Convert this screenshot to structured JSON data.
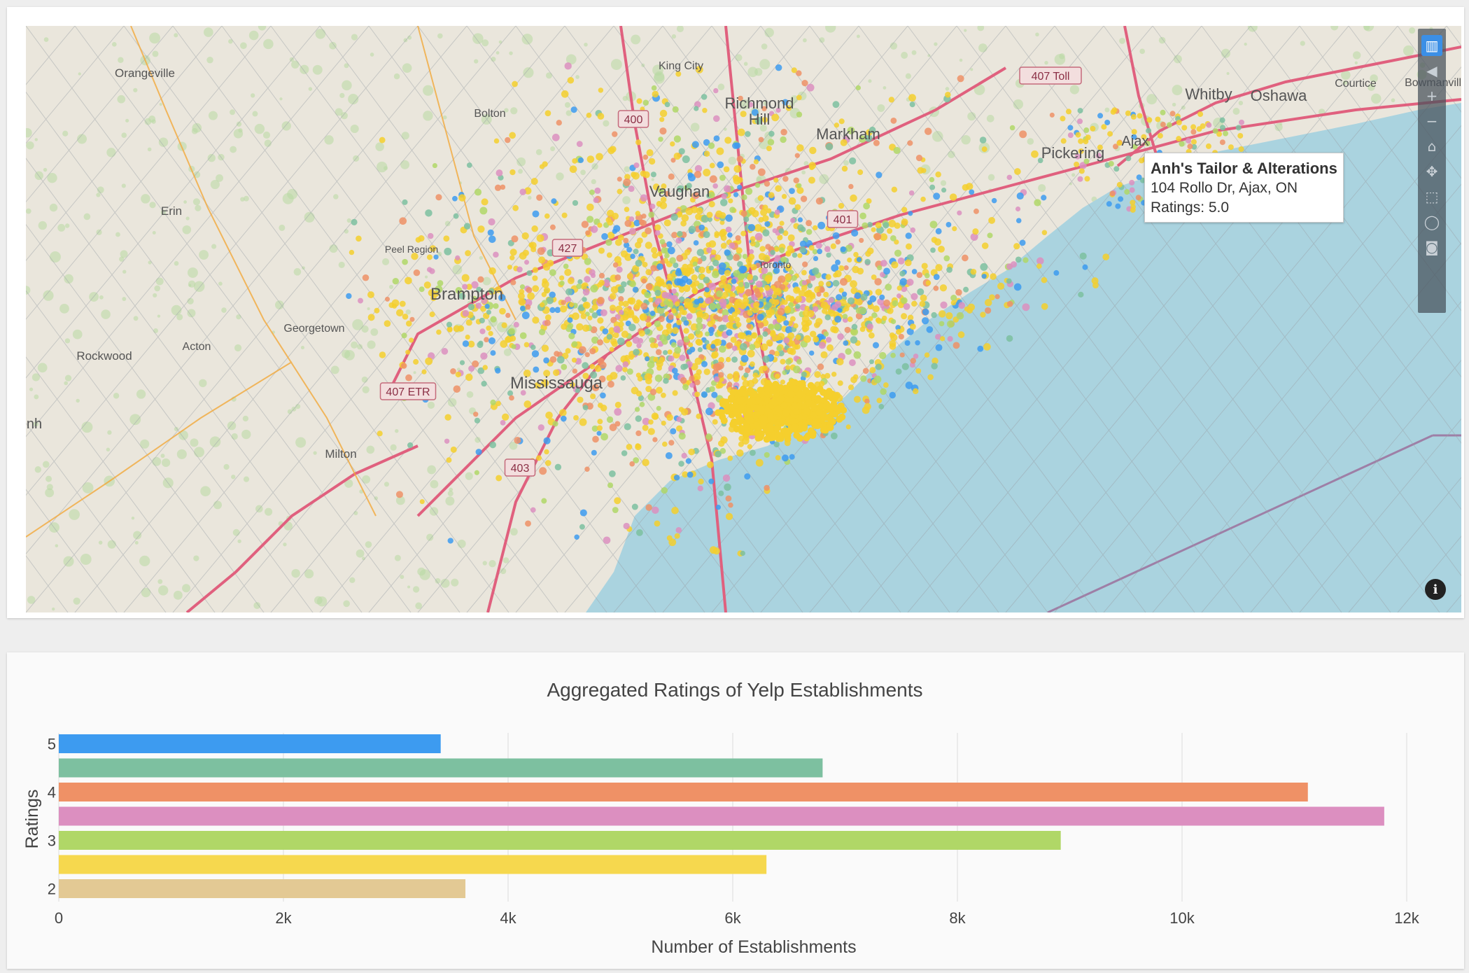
{
  "map": {
    "place_labels": [
      {
        "text": "Orangeville",
        "x": 170,
        "y": 73,
        "size": 17
      },
      {
        "text": "Bolton",
        "x": 663,
        "y": 130,
        "size": 16
      },
      {
        "text": "King City",
        "x": 936,
        "y": 62,
        "size": 16
      },
      {
        "text": "Richmond",
        "x": 1048,
        "y": 118,
        "size": 22
      },
      {
        "text": "Hill",
        "x": 1048,
        "y": 141,
        "size": 22
      },
      {
        "text": "Markham",
        "x": 1175,
        "y": 162,
        "size": 22
      },
      {
        "text": "Vaughan",
        "x": 934,
        "y": 244,
        "size": 22
      },
      {
        "text": "Whitby",
        "x": 1690,
        "y": 105,
        "size": 22
      },
      {
        "text": "Oshawa",
        "x": 1790,
        "y": 107,
        "size": 22
      },
      {
        "text": "Courtice",
        "x": 1900,
        "y": 87,
        "size": 16
      },
      {
        "text": "Bowmanville",
        "x": 2015,
        "y": 86,
        "size": 16
      },
      {
        "text": "Ajax",
        "x": 1585,
        "y": 171,
        "size": 20
      },
      {
        "text": "Pickering",
        "x": 1496,
        "y": 189,
        "size": 22
      },
      {
        "text": "Erin",
        "x": 208,
        "y": 270,
        "size": 17
      },
      {
        "text": "Peel Region",
        "x": 551,
        "y": 324,
        "size": 14
      },
      {
        "text": "Brampton",
        "x": 630,
        "y": 391,
        "size": 24
      },
      {
        "text": "Toronto",
        "x": 1070,
        "y": 346,
        "size": 14
      },
      {
        "text": "Georgetown",
        "x": 412,
        "y": 437,
        "size": 16
      },
      {
        "text": "Acton",
        "x": 244,
        "y": 463,
        "size": 16
      },
      {
        "text": "Rockwood",
        "x": 112,
        "y": 477,
        "size": 17
      },
      {
        "text": "Mississauga",
        "x": 758,
        "y": 518,
        "size": 24
      },
      {
        "text": "Milton",
        "x": 450,
        "y": 617,
        "size": 17
      },
      {
        "text": "nh",
        "x": 12,
        "y": 575,
        "size": 20
      }
    ],
    "route_shields": [
      {
        "text": "407 Toll",
        "x": 1464,
        "y": 72
      },
      {
        "text": "400",
        "x": 868,
        "y": 134
      },
      {
        "text": "401",
        "x": 1167,
        "y": 277
      },
      {
        "text": "427",
        "x": 774,
        "y": 318
      },
      {
        "text": "407 ETR",
        "x": 546,
        "y": 523
      },
      {
        "text": "403",
        "x": 706,
        "y": 632
      }
    ],
    "tooltip": {
      "name": "Anh's Tailor & Alterations",
      "address": "104 Rollo Dr, Ajax, ON",
      "rating": "Ratings: 5.0"
    },
    "modebar_icons": [
      "bar-chart-icon",
      "tag-icon",
      "zoom-in-icon",
      "zoom-out-icon",
      "home-icon",
      "pan-icon",
      "box-select-icon",
      "lasso-icon",
      "camera-icon"
    ],
    "info_label": "i",
    "colors": {
      "water": "#aad3df",
      "land": "#eae6dc",
      "highway": "#e0607e",
      "major": "#f2a93b",
      "points_main": "#f5cf2d"
    }
  },
  "chart_data": {
    "type": "bar",
    "orientation": "horizontal",
    "title": "Aggregated Ratings of Yelp Establishments",
    "xlabel": "Number of Establishments",
    "ylabel": "Ratings",
    "categories": [
      5,
      4.5,
      4,
      3.5,
      3,
      2.5,
      2
    ],
    "values": [
      3400,
      6800,
      11120,
      11800,
      8920,
      6300,
      3620
    ],
    "colors": [
      "#3d9bf0",
      "#7dc0a0",
      "#ef9166",
      "#dc8fc0",
      "#b0d767",
      "#f6d84e",
      "#e3c994"
    ],
    "xlim": [
      0,
      12000
    ],
    "xticks": [
      0,
      2000,
      4000,
      6000,
      8000,
      10000,
      12000
    ],
    "xtick_labels": [
      "0",
      "2k",
      "4k",
      "6k",
      "8k",
      "10k",
      "12k"
    ],
    "ytick_labels": [
      "5",
      "4",
      "3",
      "2"
    ],
    "grid": true
  }
}
